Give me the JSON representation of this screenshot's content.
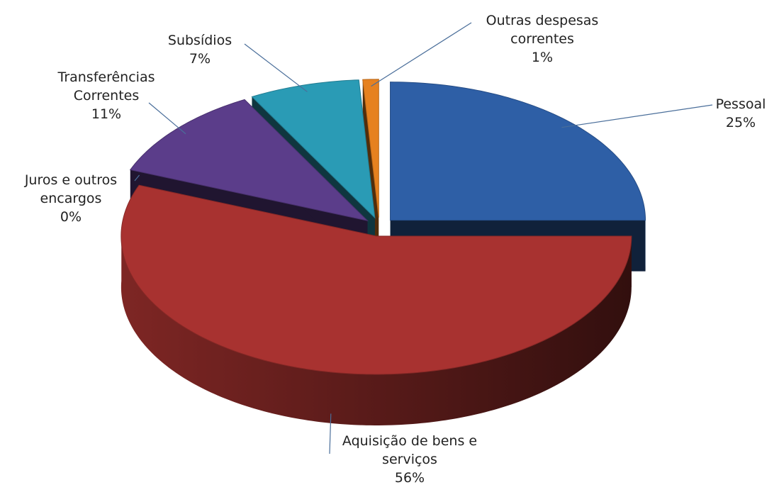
{
  "chart_data": {
    "type": "pie3d",
    "categories": [
      "Pessoal",
      "Aquisição de bens e serviços",
      "Juros e outros encargos",
      "Transferências Correntes",
      "Subsídios",
      "Outras despesas correntes"
    ],
    "values": [
      25,
      56,
      0,
      11,
      7,
      1
    ],
    "value_labels": [
      "25%",
      "56%",
      "0%",
      "11%",
      "7%",
      "1%"
    ],
    "colors": [
      "#2e5fa6",
      "#a83230",
      "#4e6b1f",
      "#5b3d8a",
      "#2a9bb5",
      "#e6811f"
    ]
  }
}
